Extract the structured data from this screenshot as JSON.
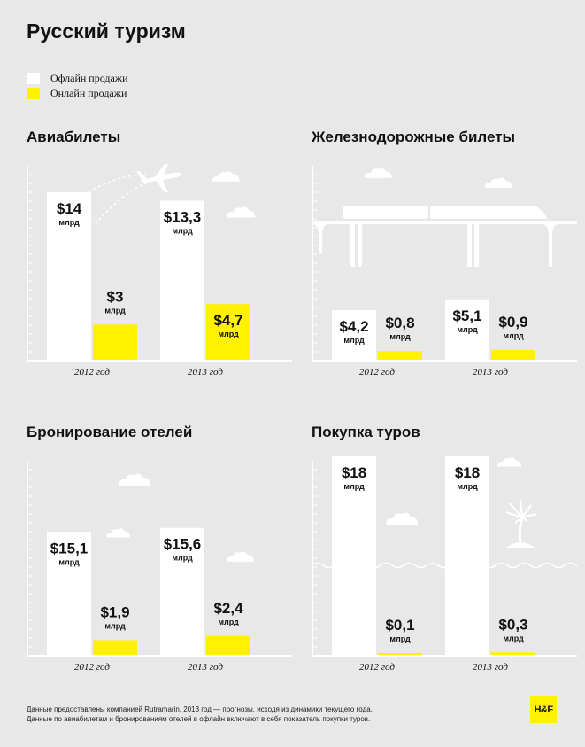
{
  "title": "Русский туризм",
  "legend": [
    {
      "label": "Офлайн продажи",
      "color": "#ffffff"
    },
    {
      "label": "Онлайн продажи",
      "color": "#fff100"
    }
  ],
  "colors": {
    "background": "#e8e8e8",
    "offline": "#ffffff",
    "online": "#fff100",
    "line": "#ffffff"
  },
  "unit": "млрд",
  "chart_data": [
    {
      "type": "bar",
      "title": "Авиабилеты",
      "categories": [
        "2012 год",
        "2013 год"
      ],
      "ylim": [
        0,
        14
      ],
      "series": [
        {
          "name": "Офлайн продажи",
          "values": [
            14,
            13.3
          ],
          "labels": [
            "$14",
            "$13,3"
          ]
        },
        {
          "name": "Онлайн продажи",
          "values": [
            3,
            4.7
          ],
          "labels": [
            "$3",
            "$4,7"
          ]
        }
      ],
      "decoration": "airplane-icon"
    },
    {
      "type": "bar",
      "title": "Железнодорожные билеты",
      "categories": [
        "2012 год",
        "2013 год"
      ],
      "ylim": [
        0,
        14
      ],
      "series": [
        {
          "name": "Офлайн продажи",
          "values": [
            4.2,
            5.1
          ],
          "labels": [
            "$4,2",
            "$5,1"
          ]
        },
        {
          "name": "Онлайн продажи",
          "values": [
            0.8,
            0.9
          ],
          "labels": [
            "$0,8",
            "$0,9"
          ]
        }
      ],
      "decoration": "train-icon"
    },
    {
      "type": "bar",
      "title": "Бронирование отелей",
      "categories": [
        "2012 год",
        "2013 год"
      ],
      "ylim": [
        0,
        28
      ],
      "series": [
        {
          "name": "Офлайн продажи",
          "values": [
            15.1,
            15.6
          ],
          "labels": [
            "$15,1",
            "$15,6"
          ]
        },
        {
          "name": "Онлайн продажи",
          "values": [
            1.9,
            2.4
          ],
          "labels": [
            "$1,9",
            "$2,4"
          ]
        }
      ],
      "decoration": "skyscraper-icon"
    },
    {
      "type": "bar",
      "title": "Покупка туров",
      "categories": [
        "2012 год",
        "2013 год"
      ],
      "ylim": [
        0,
        18
      ],
      "series": [
        {
          "name": "Офлайн продажи",
          "values": [
            18,
            18
          ],
          "labels": [
            "$18",
            "$18"
          ]
        },
        {
          "name": "Онлайн продажи",
          "values": [
            0.1,
            0.3
          ],
          "labels": [
            "$0,1",
            "$0,3"
          ]
        }
      ],
      "decoration": "palm-island-icon"
    }
  ],
  "footnote": {
    "line1": "Данные предоставлены компанией Rutramarin. 2013 год — прогнозы, исходя из динамики текущего года.",
    "line2": "Данные по авиабилетам и бронированиям отелей в офлайн включают в себя показатель покупки туров."
  },
  "logo": "H&F"
}
